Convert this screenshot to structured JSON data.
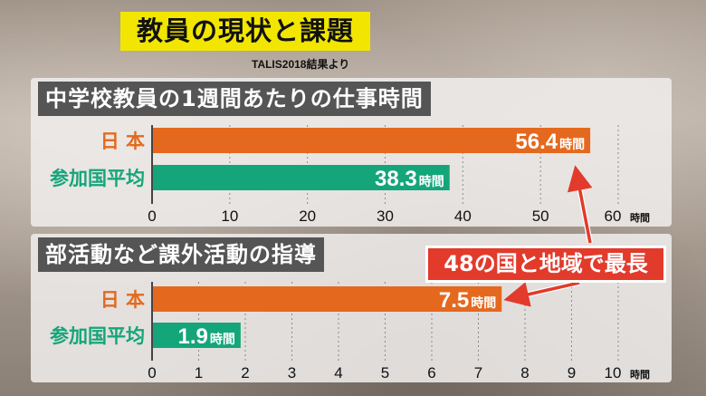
{
  "header": {
    "title": "教員の現状と課題",
    "source": "TALIS2018結果より"
  },
  "callout": "48の国と地域で最長",
  "colors": {
    "japan": "#e4691f",
    "average": "#15a57a",
    "title_bg": "#f2e600",
    "callout_bg": "#e23a2b"
  },
  "chart_data": [
    {
      "type": "bar",
      "title": "中学校教員の1週間あたりの仕事時間",
      "categories": [
        "日 本",
        "参加国平均"
      ],
      "values": [
        56.4,
        38.3
      ],
      "value_labels": [
        "56.4",
        "38.3"
      ],
      "value_unit": "時間",
      "xlim": [
        0,
        60
      ],
      "ticks": [
        "0",
        "10",
        "20",
        "30",
        "40",
        "50",
        "60"
      ],
      "tick_values": [
        0,
        10,
        20,
        30,
        40,
        50,
        60
      ],
      "axis_unit": "時間"
    },
    {
      "type": "bar",
      "title": "部活動など課外活動の指導",
      "categories": [
        "日 本",
        "参加国平均"
      ],
      "values": [
        7.5,
        1.9
      ],
      "value_labels": [
        "7.5",
        "1.9"
      ],
      "value_unit": "時間",
      "xlim": [
        0,
        10
      ],
      "ticks": [
        "0",
        "1",
        "2",
        "3",
        "4",
        "5",
        "6",
        "7",
        "8",
        "9",
        "10"
      ],
      "tick_values": [
        0,
        1,
        2,
        3,
        4,
        5,
        6,
        7,
        8,
        9,
        10
      ],
      "axis_unit": "時間"
    }
  ]
}
